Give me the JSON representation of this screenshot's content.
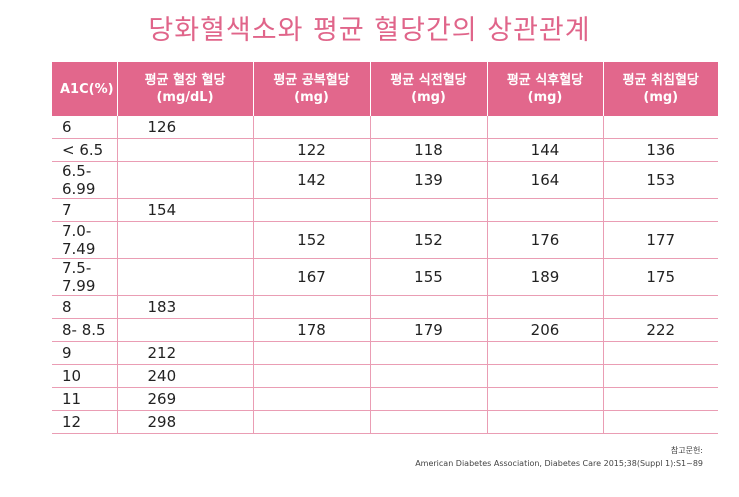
{
  "header": {
    "title": "당화혈색소와 평균 혈당간의 상관관계"
  },
  "table": {
    "columns": [
      {
        "name": "A1C(%)",
        "unit": null
      },
      {
        "name": "평균 혈장 혈당",
        "unit": "(mg/dL)"
      },
      {
        "name": "평균 공복혈당",
        "unit": "(mg)"
      },
      {
        "name": "평균 식전혈당",
        "unit": "(mg)"
      },
      {
        "name": "평균 식후혈당",
        "unit": "(mg)"
      },
      {
        "name": "평균 취침혈당",
        "unit": "(mg)"
      }
    ],
    "rows": [
      [
        "6",
        126,
        null,
        null,
        null,
        null
      ],
      [
        "< 6.5",
        null,
        122,
        118,
        144,
        136
      ],
      [
        "6.5- 6.99",
        null,
        142,
        139,
        164,
        153
      ],
      [
        "7",
        154,
        null,
        null,
        null,
        null
      ],
      [
        "7.0- 7.49",
        null,
        152,
        152,
        176,
        177
      ],
      [
        "7.5- 7.99",
        null,
        167,
        155,
        189,
        175
      ],
      [
        "8",
        183,
        null,
        null,
        null,
        null
      ],
      [
        "8- 8.5",
        null,
        178,
        179,
        206,
        222
      ],
      [
        "9",
        212,
        null,
        null,
        null,
        null
      ],
      [
        "10",
        240,
        null,
        null,
        null,
        null
      ],
      [
        "11",
        269,
        null,
        null,
        null,
        null
      ],
      [
        "12",
        298,
        null,
        null,
        null,
        null
      ]
    ]
  },
  "footer": {
    "label": "참고문헌:",
    "citation": "American Diabetes Association, Diabetes Care 2015;38(Suppl 1):S1~89"
  }
}
